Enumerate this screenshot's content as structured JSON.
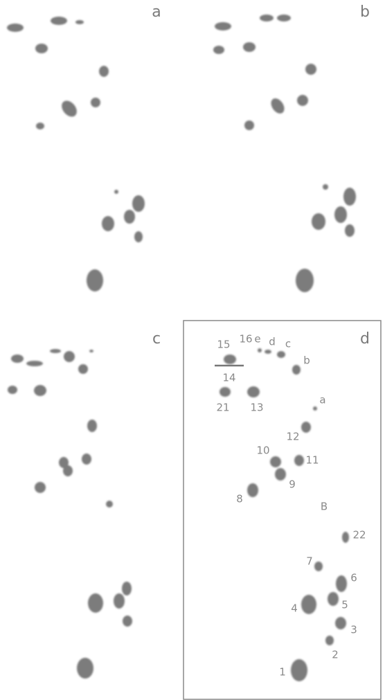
{
  "panel_labels": [
    "a",
    "b",
    "c",
    "d"
  ],
  "spot_labels": [
    "15",
    "16",
    "e",
    "d",
    "c",
    "b",
    "14",
    "21",
    "13",
    "a",
    "12",
    "10",
    "11",
    "9",
    "8",
    "B",
    "22",
    "7",
    "6",
    "5",
    "4",
    "3",
    "2",
    "1"
  ]
}
